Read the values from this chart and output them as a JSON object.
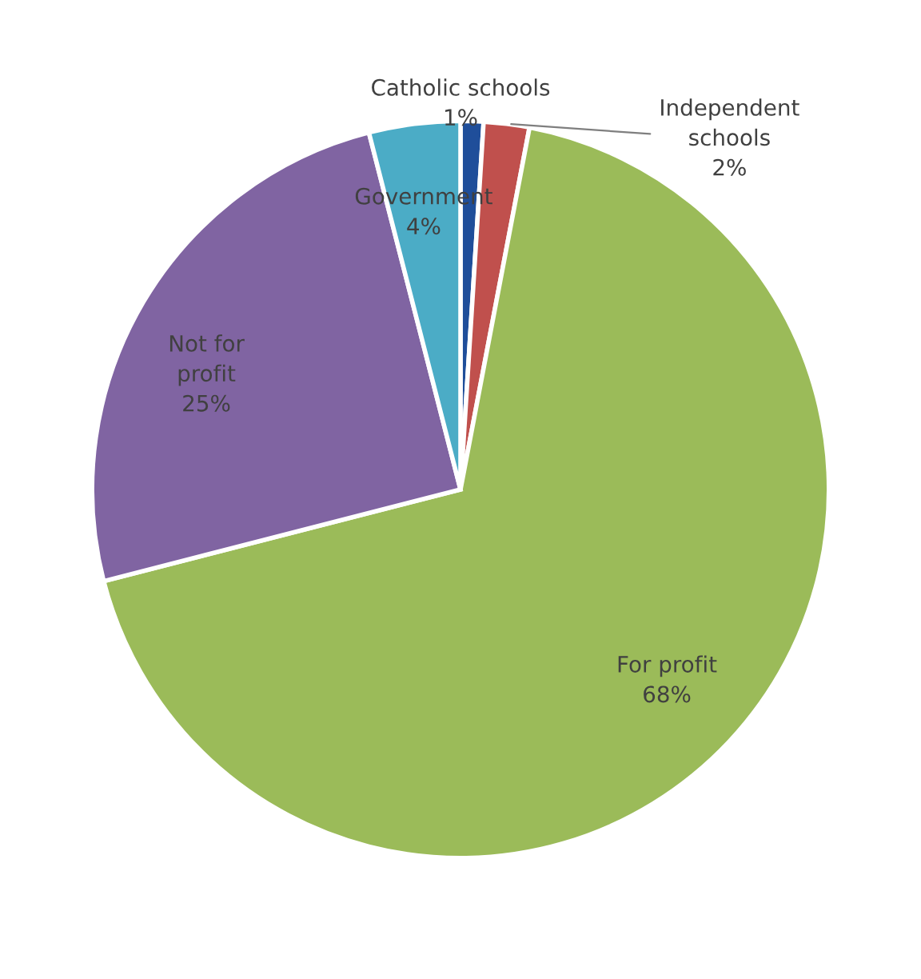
{
  "chart_data": {
    "type": "pie",
    "categories": [
      "Catholic schools",
      "Independent\nschools",
      "For profit",
      "Not for\nprofit",
      "Government"
    ],
    "values": [
      1,
      2,
      68,
      25,
      4
    ],
    "colors": [
      "#1f4e9a",
      "#c0504d",
      "#9bbb59",
      "#8064a2",
      "#4bacc6"
    ],
    "value_labels": [
      "1%",
      "2%",
      "68%",
      "25%",
      "4%"
    ]
  }
}
